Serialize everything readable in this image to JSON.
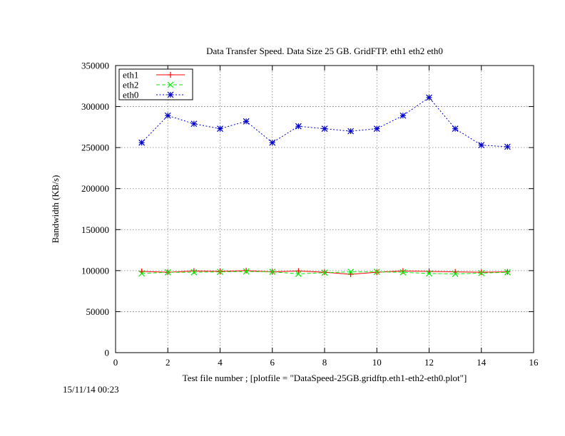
{
  "chart_data": {
    "type": "line",
    "title": "Data Transfer Speed. Data Size 25 GB. GridFTP. eth1 eth2 eth0",
    "xlabel": "Test file number ; [plotfile = \"DataSpeed-25GB.gridftp.eth1-eth2-eth0.plot\"]",
    "ylabel": "Bandwidth (KB/s)",
    "xlim": [
      0,
      16
    ],
    "ylim": [
      0,
      350000
    ],
    "xticks": [
      0,
      2,
      4,
      6,
      8,
      10,
      12,
      14,
      16
    ],
    "yticks": [
      0,
      50000,
      100000,
      150000,
      200000,
      250000,
      300000,
      350000
    ],
    "grid": true,
    "legend_position": "top-left",
    "x": [
      1,
      2,
      3,
      4,
      5,
      6,
      7,
      8,
      9,
      10,
      11,
      12,
      13,
      14,
      15
    ],
    "series": [
      {
        "name": "eth1",
        "color": "#ff0000",
        "marker": "plus",
        "dash": "solid",
        "values": [
          99000,
          98000,
          99500,
          99000,
          100000,
          98500,
          99500,
          98000,
          95500,
          98000,
          99500,
          99000,
          98500,
          98000,
          98500
        ]
      },
      {
        "name": "eth2",
        "color": "#00ee00",
        "marker": "cross",
        "dash": "dashed",
        "values": [
          96500,
          98000,
          98000,
          98500,
          99000,
          98500,
          96000,
          97500,
          98500,
          98500,
          98000,
          96500,
          96000,
          97000,
          98000
        ]
      },
      {
        "name": "eth0",
        "color": "#0000cc",
        "marker": "star",
        "dash": "dotted",
        "values": [
          256000,
          289000,
          279000,
          273000,
          282000,
          256000,
          276000,
          273000,
          270000,
          273000,
          289000,
          311000,
          273000,
          253000,
          251000
        ]
      }
    ]
  },
  "timestamp": "15/11/14 00:23"
}
